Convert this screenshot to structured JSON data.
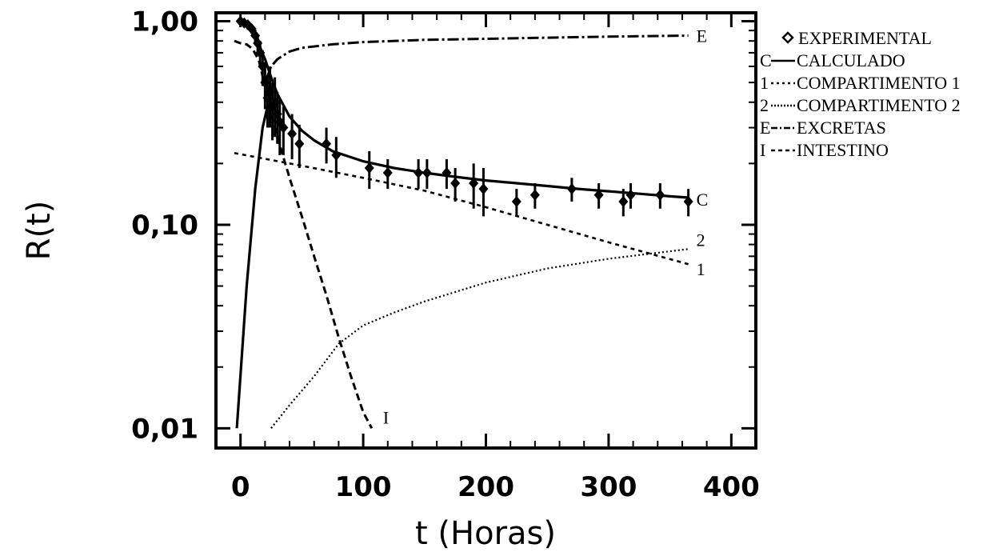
{
  "chart_data": {
    "type": "line",
    "xlabel": "t (Horas)",
    "ylabel": "R(t)",
    "x_scale": "linear",
    "y_scale": "log",
    "xlim": [
      -20,
      420
    ],
    "ylim": [
      0.008,
      1.1
    ],
    "x_ticks": [
      0,
      100,
      200,
      300,
      400
    ],
    "x_tick_labels": [
      "0",
      "100",
      "200",
      "300",
      "400"
    ],
    "y_ticks": [
      0.01,
      0.1,
      1.0
    ],
    "y_tick_labels": [
      "0,01",
      "0,10",
      "1,00"
    ],
    "grid": false,
    "legend_position": "right, outside plot",
    "legend": [
      {
        "key": "experimental",
        "marker": "◆",
        "label": "EXPERIMENTAL"
      },
      {
        "key": "calculado",
        "marker": "C",
        "label": "CALCULADO"
      },
      {
        "key": "comp1",
        "marker": "1",
        "label": "COMPARTIMENTO 1"
      },
      {
        "key": "comp2",
        "marker": "2",
        "label": "COMPARTIMENTO 2"
      },
      {
        "key": "excretas",
        "marker": "E",
        "label": "EXCRETAS"
      },
      {
        "key": "intestino",
        "marker": "I",
        "label": "INTESTINO"
      }
    ],
    "series": [
      {
        "key": "experimental",
        "kind": "points",
        "x": [
          0,
          3,
          6,
          9,
          12,
          14,
          16,
          18,
          20,
          22,
          24,
          26,
          28,
          30,
          32,
          35,
          42,
          48,
          70,
          78,
          105,
          120,
          145,
          152,
          168,
          175,
          190,
          198,
          225,
          240,
          270,
          292,
          312,
          318,
          342,
          365
        ],
        "y": [
          1.0,
          0.98,
          0.96,
          0.92,
          0.85,
          0.78,
          0.7,
          0.6,
          0.5,
          0.42,
          0.45,
          0.38,
          0.4,
          0.35,
          0.32,
          0.3,
          0.28,
          0.25,
          0.25,
          0.22,
          0.19,
          0.18,
          0.18,
          0.18,
          0.18,
          0.16,
          0.16,
          0.15,
          0.13,
          0.14,
          0.15,
          0.14,
          0.13,
          0.14,
          0.14,
          0.13
        ],
        "err": [
          0.0,
          0.03,
          0.03,
          0.05,
          0.06,
          0.08,
          0.1,
          0.12,
          0.13,
          0.12,
          0.15,
          0.12,
          0.13,
          0.1,
          0.1,
          0.08,
          0.07,
          0.06,
          0.05,
          0.05,
          0.04,
          0.03,
          0.03,
          0.03,
          0.03,
          0.03,
          0.04,
          0.04,
          0.02,
          0.02,
          0.02,
          0.02,
          0.02,
          0.02,
          0.02,
          0.02
        ]
      },
      {
        "key": "calculado",
        "end_label": "C",
        "x": [
          0,
          5,
          10,
          15,
          20,
          25,
          30,
          40,
          50,
          60,
          75,
          100,
          125,
          150,
          175,
          200,
          225,
          250,
          275,
          300,
          325,
          350,
          365
        ],
        "y": [
          1.0,
          0.95,
          0.87,
          0.77,
          0.65,
          0.53,
          0.44,
          0.34,
          0.29,
          0.26,
          0.23,
          0.205,
          0.19,
          0.18,
          0.172,
          0.165,
          0.16,
          0.155,
          0.15,
          0.146,
          0.142,
          0.138,
          0.136
        ]
      },
      {
        "key": "comp1",
        "end_label": "1",
        "x": [
          -5,
          50,
          100,
          150,
          200,
          250,
          300,
          365
        ],
        "y": [
          0.225,
          0.195,
          0.17,
          0.147,
          0.122,
          0.1,
          0.082,
          0.064
        ]
      },
      {
        "key": "comp2",
        "end_label": "2",
        "x": [
          25,
          40,
          60,
          80,
          100,
          125,
          150,
          200,
          250,
          300,
          365
        ],
        "y": [
          0.01,
          0.013,
          0.018,
          0.026,
          0.032,
          0.037,
          0.042,
          0.052,
          0.061,
          0.068,
          0.076
        ]
      },
      {
        "key": "excretas",
        "end_label": "E",
        "x": [
          20,
          25,
          30,
          40,
          50,
          75,
          100,
          150,
          200,
          250,
          300,
          365
        ],
        "y": [
          0.5,
          0.6,
          0.65,
          0.71,
          0.74,
          0.77,
          0.79,
          0.81,
          0.82,
          0.83,
          0.84,
          0.85
        ]
      },
      {
        "key": "intestino",
        "end_label": "I",
        "x": [
          -5,
          0,
          5,
          10,
          15,
          20,
          25,
          30,
          40,
          50,
          60,
          70,
          80,
          90,
          100,
          107
        ],
        "y": [
          0.8,
          0.78,
          0.77,
          0.73,
          0.64,
          0.48,
          0.35,
          0.27,
          0.17,
          0.11,
          0.07,
          0.045,
          0.028,
          0.018,
          0.012,
          0.01
        ]
      },
      {
        "key": "rise",
        "x": [
          -3,
          5,
          12,
          18,
          22
        ],
        "y": [
          0.01,
          0.05,
          0.15,
          0.3,
          0.38
        ]
      }
    ]
  }
}
